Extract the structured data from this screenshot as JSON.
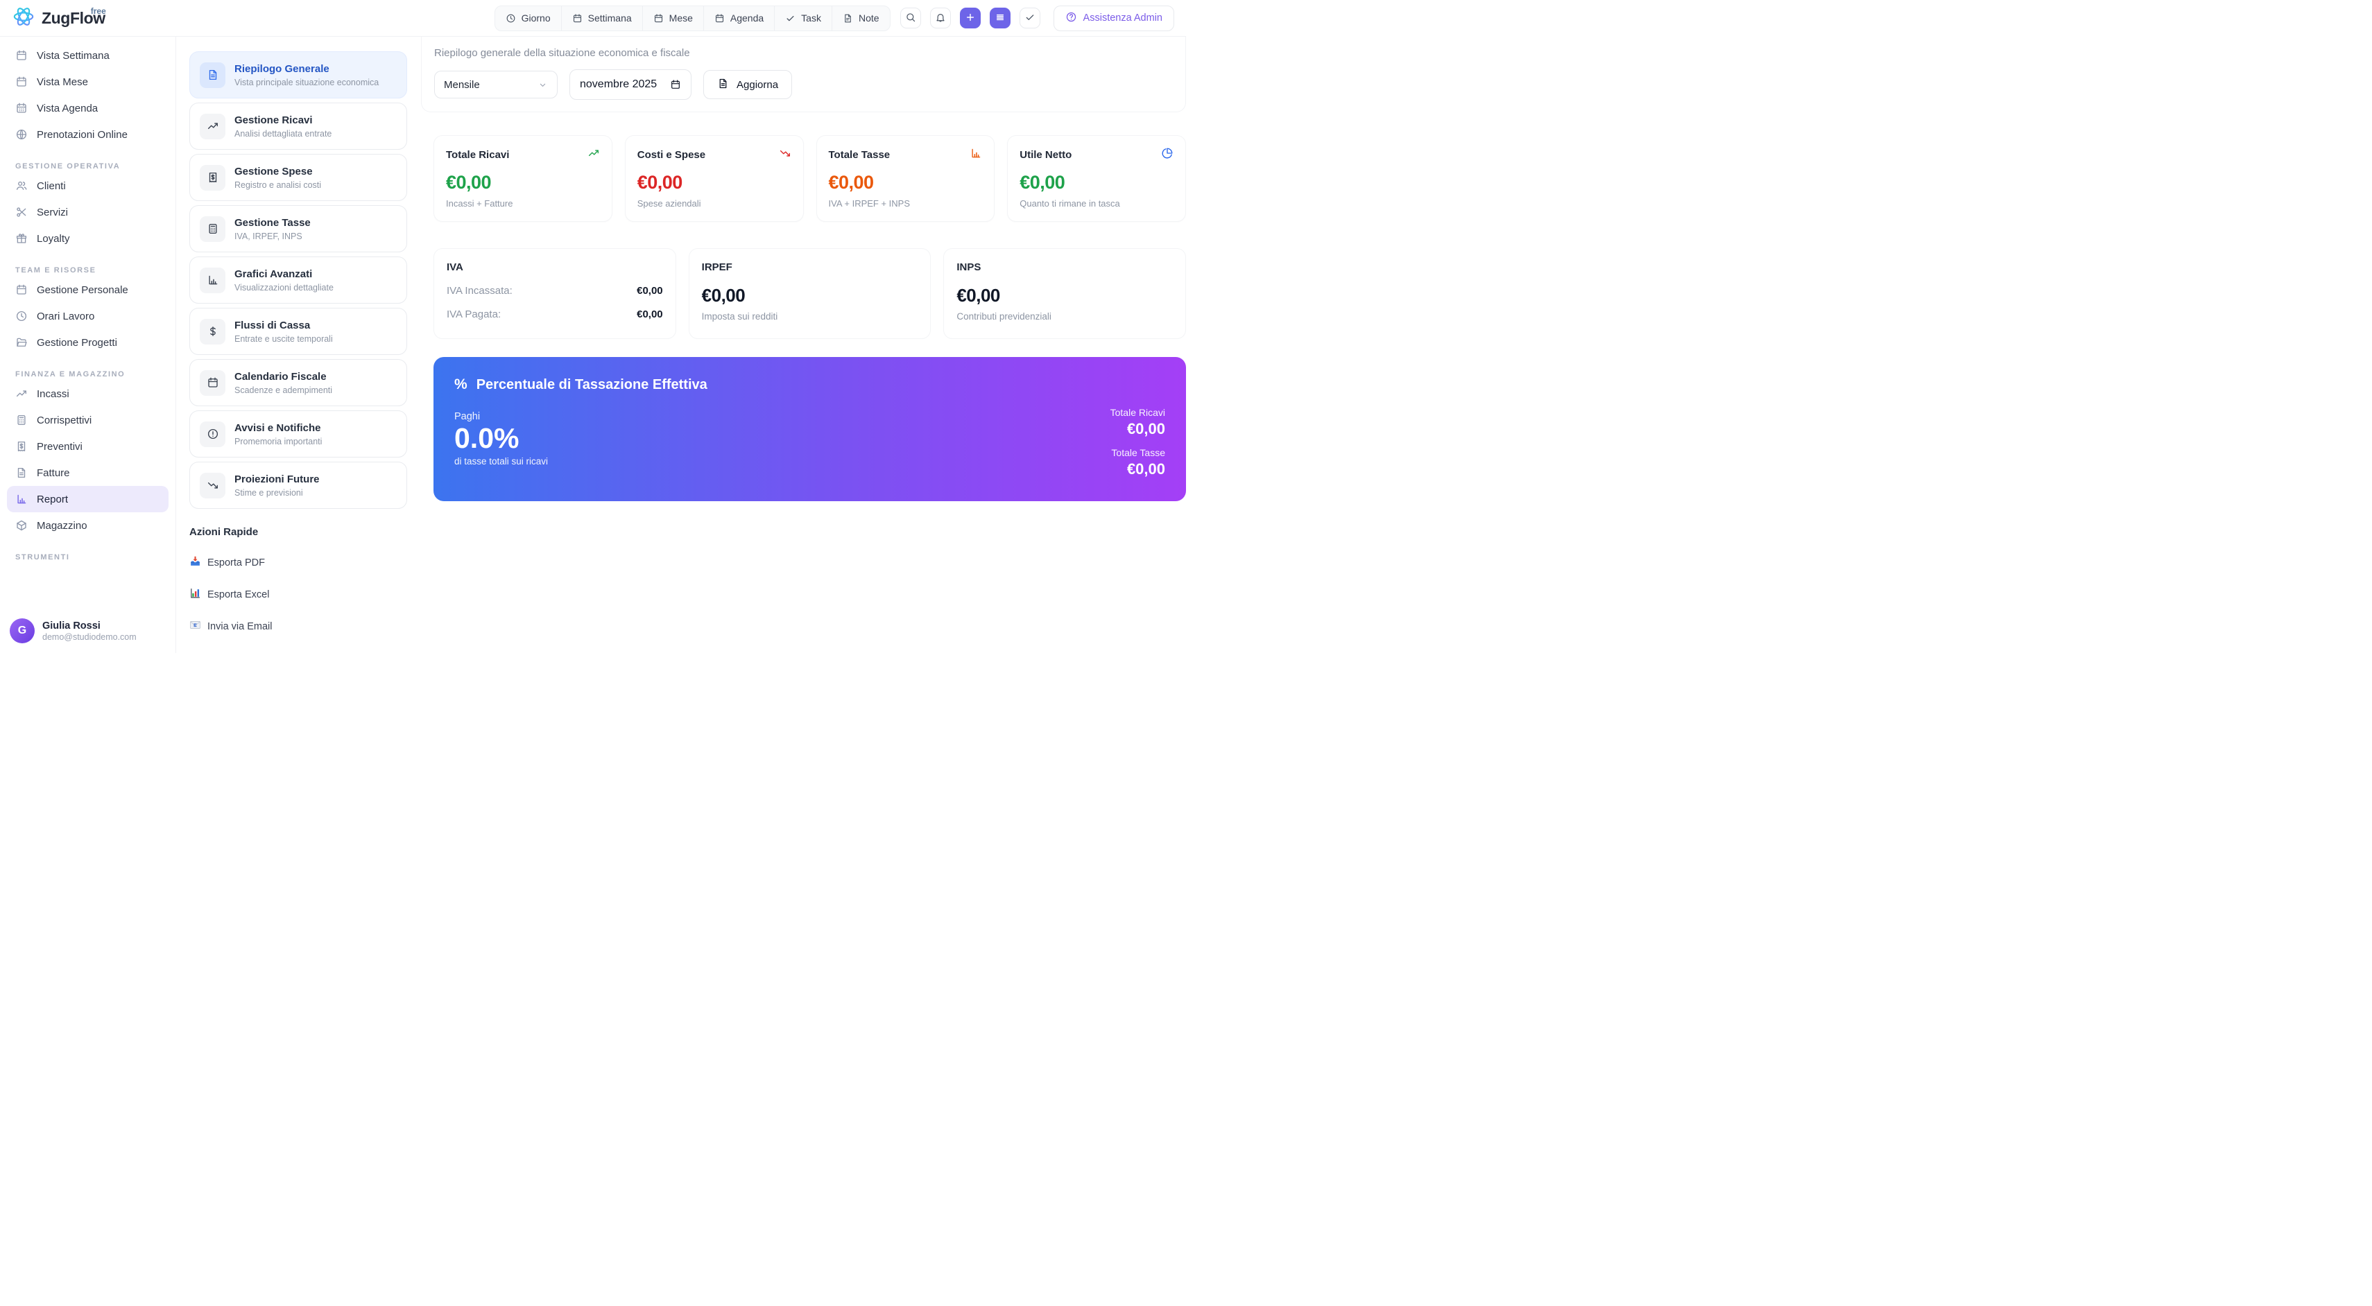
{
  "brand": {
    "name": "ZugFlow",
    "badge": "free"
  },
  "topbar": {
    "nav": [
      {
        "icon": "clock",
        "label": "Giorno"
      },
      {
        "icon": "calendar",
        "label": "Settimana"
      },
      {
        "icon": "calendar",
        "label": "Mese"
      },
      {
        "icon": "calendar",
        "label": "Agenda"
      },
      {
        "icon": "check",
        "label": "Task"
      },
      {
        "icon": "file",
        "label": "Note"
      }
    ],
    "actions": [
      {
        "name": "search",
        "icon": "search",
        "primary": false
      },
      {
        "name": "notifications",
        "icon": "bell",
        "primary": false
      },
      {
        "name": "add",
        "icon": "plus",
        "primary": true
      },
      {
        "name": "menu",
        "icon": "menu",
        "primary": true
      },
      {
        "name": "tasks-done",
        "icon": "check",
        "primary": false
      }
    ],
    "assist_label": "Assistenza Admin"
  },
  "sidebar": {
    "sections": [
      {
        "header": null,
        "items": [
          {
            "icon": "calendar",
            "label": "Vista Settimana"
          },
          {
            "icon": "calendar",
            "label": "Vista Mese"
          },
          {
            "icon": "calendar-days",
            "label": "Vista Agenda"
          },
          {
            "icon": "globe",
            "label": "Prenotazioni Online"
          }
        ]
      },
      {
        "header": "GESTIONE OPERATIVA",
        "items": [
          {
            "icon": "users",
            "label": "Clienti"
          },
          {
            "icon": "scissors",
            "label": "Servizi"
          },
          {
            "icon": "gift",
            "label": "Loyalty"
          }
        ]
      },
      {
        "header": "TEAM E RISORSE",
        "items": [
          {
            "icon": "calendar",
            "label": "Gestione Personale"
          },
          {
            "icon": "clock",
            "label": "Orari Lavoro"
          },
          {
            "icon": "folder-open",
            "label": "Gestione Progetti"
          }
        ]
      },
      {
        "header": "FINANZA E MAGAZZINO",
        "items": [
          {
            "icon": "trending-up",
            "label": "Incassi"
          },
          {
            "icon": "calculator",
            "label": "Corrispettivi"
          },
          {
            "icon": "receipt-dollar",
            "label": "Preventivi"
          },
          {
            "icon": "file-text",
            "label": "Fatture"
          },
          {
            "icon": "bar-chart",
            "label": "Report",
            "active": true
          },
          {
            "icon": "package",
            "label": "Magazzino"
          }
        ]
      },
      {
        "header": "STRUMENTI",
        "items": []
      }
    ],
    "user": {
      "initial": "G",
      "name": "Giulia Rossi",
      "email": "demo@studiodemo.com"
    }
  },
  "submenu": {
    "cards": [
      {
        "icon": "file-text",
        "title": "Riepilogo Generale",
        "subtitle": "Vista principale situazione economica",
        "active": true
      },
      {
        "icon": "trending-up",
        "title": "Gestione Ricavi",
        "subtitle": "Analisi dettagliata entrate"
      },
      {
        "icon": "receipt-dollar",
        "title": "Gestione Spese",
        "subtitle": "Registro e analisi costi"
      },
      {
        "icon": "calculator",
        "title": "Gestione Tasse",
        "subtitle": "IVA, IRPEF, INPS"
      },
      {
        "icon": "bar-chart",
        "title": "Grafici Avanzati",
        "subtitle": "Visualizzazioni dettagliate"
      },
      {
        "icon": "dollar",
        "title": "Flussi di Cassa",
        "subtitle": "Entrate e uscite temporali"
      },
      {
        "icon": "calendar",
        "title": "Calendario Fiscale",
        "subtitle": "Scadenze e adempimenti"
      },
      {
        "icon": "alert-circle",
        "title": "Avvisi e Notifiche",
        "subtitle": "Promemoria importanti"
      },
      {
        "icon": "trending-down",
        "title": "Proiezioni Future",
        "subtitle": "Stime e previsioni"
      }
    ],
    "quick_actions": {
      "title": "Azioni Rapide",
      "items": [
        {
          "icon": "emoji-pdf",
          "label": "Esporta PDF"
        },
        {
          "icon": "emoji-excel",
          "label": "Esporta Excel"
        },
        {
          "icon": "emoji-email",
          "label": "Invia via Email"
        }
      ]
    }
  },
  "main": {
    "subtitle": "Riepilogo generale della situazione economica e fiscale",
    "filters": {
      "period": "Mensile",
      "date": "novembre  2025",
      "refresh_label": "Aggiorna"
    },
    "kpis": [
      {
        "title": "Totale Ricavi",
        "icon": "trending-up",
        "color": "#1ea24a",
        "value": "€0,00",
        "caption": "Incassi + Fatture"
      },
      {
        "title": "Costi e Spese",
        "icon": "trending-down",
        "color": "#dc2626",
        "value": "€0,00",
        "caption": "Spese aziendali"
      },
      {
        "title": "Totale Tasse",
        "icon": "bar-chart",
        "color": "#ea580c",
        "value": "€0,00",
        "caption": "IVA + IRPEF + INPS"
      },
      {
        "title": "Utile Netto",
        "icon": "pie-chart",
        "color": "#1ea24a",
        "icon_color": "#2563eb",
        "value": "€0,00",
        "caption": "Quanto ti rimane in tasca"
      }
    ],
    "tax": {
      "iva": {
        "title": "IVA",
        "rows": [
          {
            "label": "IVA Incassata:",
            "value": "€0,00"
          },
          {
            "label": "IVA Pagata:",
            "value": "€0,00"
          }
        ]
      },
      "irpef": {
        "title": "IRPEF",
        "value": "€0,00",
        "caption": "Imposta sui redditi"
      },
      "inps": {
        "title": "INPS",
        "value": "€0,00",
        "caption": "Contributi previdenziali"
      }
    },
    "banner": {
      "title_icon": "%",
      "title": "Percentuale di Tassazione Effettiva",
      "paghi_label": "Paghi",
      "percent": "0.0%",
      "caption": "di tasse totali sui ricavi",
      "stats": [
        {
          "label": "Totale Ricavi",
          "value": "€0,00"
        },
        {
          "label": "Totale Tasse",
          "value": "€0,00"
        }
      ],
      "gradient": [
        "#3c74ef",
        "#a43ff6"
      ]
    }
  },
  "colors": {
    "accent": "#6d64e8",
    "active_nav_bg": "#edeafc",
    "active_card_bg": "#eef4fe",
    "green": "#1ea24a",
    "red": "#dc2626",
    "orange": "#ea580c",
    "blue": "#2563eb"
  }
}
